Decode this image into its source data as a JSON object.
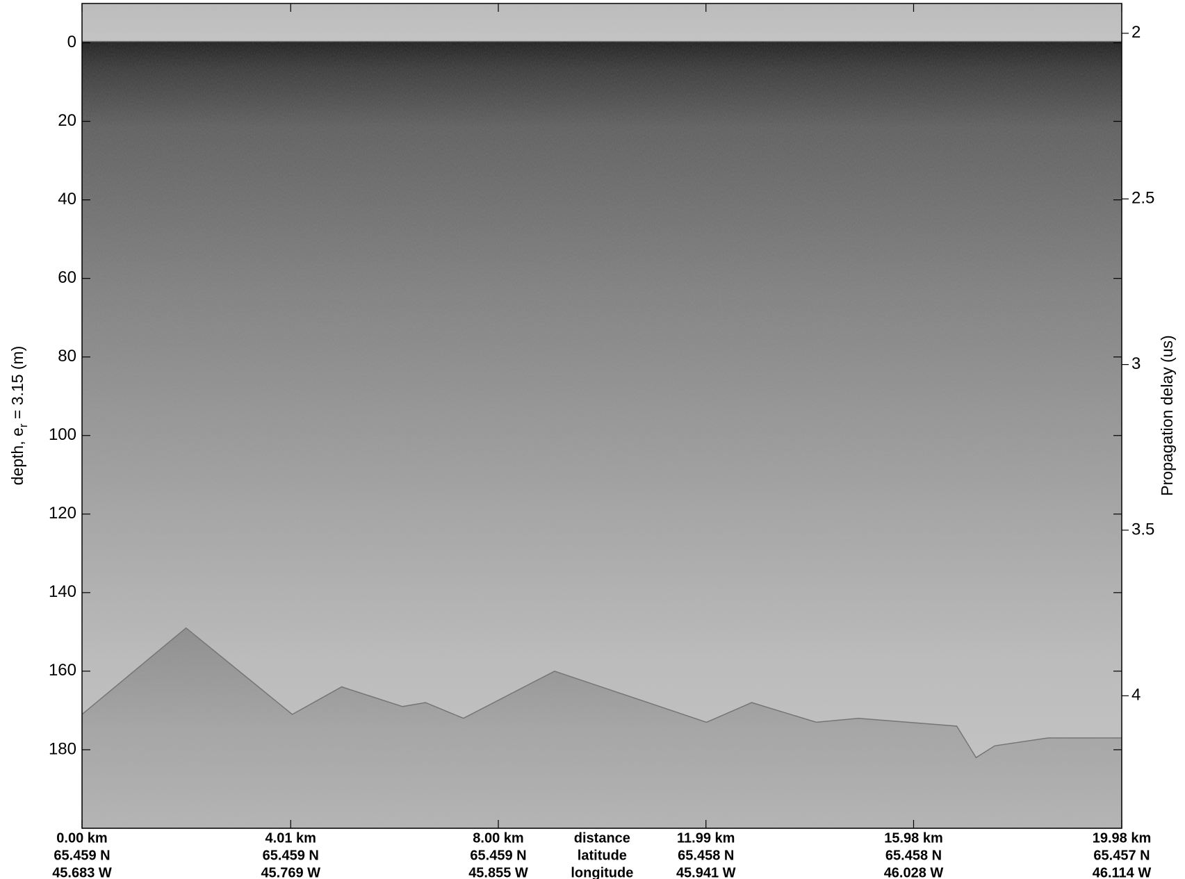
{
  "chart_data": {
    "type": "echogram",
    "ylabel": {
      "text": "depth, e",
      "sub": "r",
      "tail": " = 3.15 (m)"
    },
    "y2label": "Propagation delay (us)",
    "ylim": [
      -10,
      200
    ],
    "invert_y": true,
    "yticks": [
      0,
      20,
      40,
      60,
      80,
      100,
      120,
      140,
      160,
      180
    ],
    "y2lim": [
      1.91,
      4.4
    ],
    "y2ticks": [
      2,
      2.5,
      3,
      3.5,
      4
    ],
    "xlim": [
      0,
      19.98
    ],
    "xticks": [
      {
        "value": 0,
        "label": "0.00 km"
      },
      {
        "value": 4.01,
        "label": "4.01 km"
      },
      {
        "value": 8.0,
        "label": "8.00 km"
      },
      {
        "value": 11.99,
        "label": "11.99 km"
      },
      {
        "value": 15.98,
        "label": "15.98 km"
      },
      {
        "value": 19.98,
        "label": "19.98 km"
      }
    ],
    "latitude": [
      "65.459 N",
      "65.459 N",
      "65.459 N",
      "65.458 N",
      "65.458 N",
      "65.457 N"
    ],
    "longitude": [
      "45.683 W",
      "45.769 W",
      "45.855 W",
      "45.941 W",
      "46.028 W",
      "46.114 W"
    ],
    "row_labels": [
      "distance",
      "latitude",
      "longitude"
    ],
    "bed": {
      "x": [
        0,
        2.0,
        4.04,
        4.99,
        6.16,
        6.6,
        7.33,
        9.08,
        12.0,
        12.87,
        14.11,
        14.92,
        16.81,
        17.18,
        17.54,
        18.56,
        19.98
      ],
      "values": [
        171,
        149,
        171,
        164,
        169,
        168,
        172,
        160,
        173,
        168,
        173,
        172,
        174,
        182,
        179,
        177,
        177
      ]
    }
  }
}
